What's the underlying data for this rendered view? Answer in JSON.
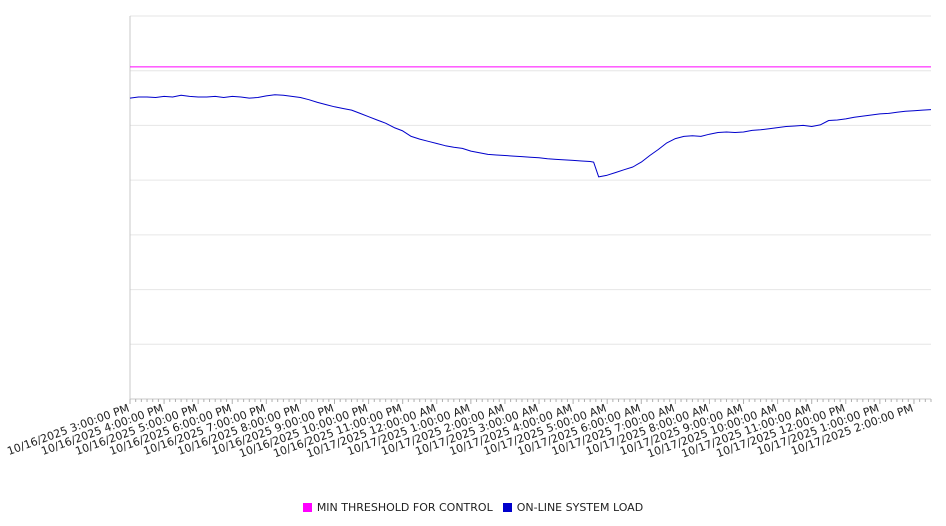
{
  "chart_data": {
    "type": "line",
    "title": "",
    "xlabel": "",
    "ylabel": "",
    "x_categories": [
      "10/16/2025 3:00:00 PM",
      "10/16/2025 4:00:00 PM",
      "10/16/2025 5:00:00 PM",
      "10/16/2025 6:00:00 PM",
      "10/16/2025 7:00:00 PM",
      "10/16/2025 8:00:00 PM",
      "10/16/2025 9:00:00 PM",
      "10/16/2025 10:00:00 PM",
      "10/16/2025 11:00:00 PM",
      "10/17/2025 12:00:00 AM",
      "10/17/2025 1:00:00 AM",
      "10/17/2025 2:00:00 AM",
      "10/17/2025 3:00:00 AM",
      "10/17/2025 4:00:00 AM",
      "10/17/2025 5:00:00 AM",
      "10/17/2025 6:00:00 AM",
      "10/17/2025 7:00:00 AM",
      "10/17/2025 8:00:00 AM",
      "10/17/2025 9:00:00 AM",
      "10/17/2025 10:00:00 AM",
      "10/17/2025 11:00:00 AM",
      "10/17/2025 12:00:00 PM",
      "10/17/2025 1:00:00 PM",
      "10/17/2025 2:00:00 PM"
    ],
    "ylim": [
      0,
      7
    ],
    "grid": true,
    "y_tick_labels_shown": false,
    "legend_position": "bottom",
    "series": [
      {
        "name": "MIN THRESHOLD FOR CONTROL",
        "color": "#ff00ff",
        "points": [
          [
            0,
            6.07
          ],
          [
            23.5,
            6.07
          ]
        ]
      },
      {
        "name": "ON-LINE SYSTEM LOAD",
        "color": "#0000cc",
        "points": [
          [
            0,
            5.5
          ],
          [
            0.25,
            5.52
          ],
          [
            0.5,
            5.52
          ],
          [
            0.75,
            5.51
          ],
          [
            1,
            5.53
          ],
          [
            1.25,
            5.52
          ],
          [
            1.5,
            5.55
          ],
          [
            1.75,
            5.53
          ],
          [
            2,
            5.52
          ],
          [
            2.25,
            5.52
          ],
          [
            2.5,
            5.53
          ],
          [
            2.75,
            5.51
          ],
          [
            3,
            5.53
          ],
          [
            3.25,
            5.52
          ],
          [
            3.5,
            5.5
          ],
          [
            3.75,
            5.51
          ],
          [
            4,
            5.54
          ],
          [
            4.25,
            5.56
          ],
          [
            4.5,
            5.55
          ],
          [
            4.75,
            5.53
          ],
          [
            5,
            5.51
          ],
          [
            5.25,
            5.47
          ],
          [
            5.5,
            5.42
          ],
          [
            5.75,
            5.38
          ],
          [
            6,
            5.34
          ],
          [
            6.25,
            5.31
          ],
          [
            6.5,
            5.28
          ],
          [
            6.75,
            5.22
          ],
          [
            7,
            5.16
          ],
          [
            7.25,
            5.1
          ],
          [
            7.5,
            5.04
          ],
          [
            7.75,
            4.96
          ],
          [
            8,
            4.9
          ],
          [
            8.25,
            4.8
          ],
          [
            8.5,
            4.75
          ],
          [
            8.75,
            4.71
          ],
          [
            9,
            4.67
          ],
          [
            9.25,
            4.63
          ],
          [
            9.5,
            4.6
          ],
          [
            9.75,
            4.58
          ],
          [
            10,
            4.53
          ],
          [
            10.25,
            4.5
          ],
          [
            10.5,
            4.47
          ],
          [
            10.75,
            4.46
          ],
          [
            11,
            4.45
          ],
          [
            11.25,
            4.44
          ],
          [
            11.5,
            4.43
          ],
          [
            11.75,
            4.42
          ],
          [
            12,
            4.41
          ],
          [
            12.25,
            4.39
          ],
          [
            12.5,
            4.38
          ],
          [
            12.75,
            4.37
          ],
          [
            13,
            4.36
          ],
          [
            13.25,
            4.35
          ],
          [
            13.5,
            4.34
          ],
          [
            13.6,
            4.33
          ],
          [
            13.75,
            4.06
          ],
          [
            14,
            4.09
          ],
          [
            14.25,
            4.14
          ],
          [
            14.5,
            4.19
          ],
          [
            14.75,
            4.24
          ],
          [
            15,
            4.33
          ],
          [
            15.25,
            4.45
          ],
          [
            15.5,
            4.56
          ],
          [
            15.75,
            4.68
          ],
          [
            16,
            4.76
          ],
          [
            16.25,
            4.8
          ],
          [
            16.5,
            4.81
          ],
          [
            16.75,
            4.8
          ],
          [
            17,
            4.84
          ],
          [
            17.25,
            4.87
          ],
          [
            17.5,
            4.88
          ],
          [
            17.75,
            4.87
          ],
          [
            18,
            4.88
          ],
          [
            18.25,
            4.91
          ],
          [
            18.5,
            4.92
          ],
          [
            18.75,
            4.94
          ],
          [
            19,
            4.96
          ],
          [
            19.25,
            4.98
          ],
          [
            19.5,
            4.99
          ],
          [
            19.75,
            5.0
          ],
          [
            20,
            4.98
          ],
          [
            20.25,
            5.01
          ],
          [
            20.5,
            5.09
          ],
          [
            20.75,
            5.1
          ],
          [
            21,
            5.12
          ],
          [
            21.25,
            5.15
          ],
          [
            21.5,
            5.17
          ],
          [
            21.75,
            5.19
          ],
          [
            22,
            5.21
          ],
          [
            22.25,
            5.22
          ],
          [
            22.5,
            5.24
          ],
          [
            22.75,
            5.26
          ],
          [
            23,
            5.27
          ],
          [
            23.25,
            5.28
          ],
          [
            23.5,
            5.29
          ]
        ]
      }
    ]
  }
}
